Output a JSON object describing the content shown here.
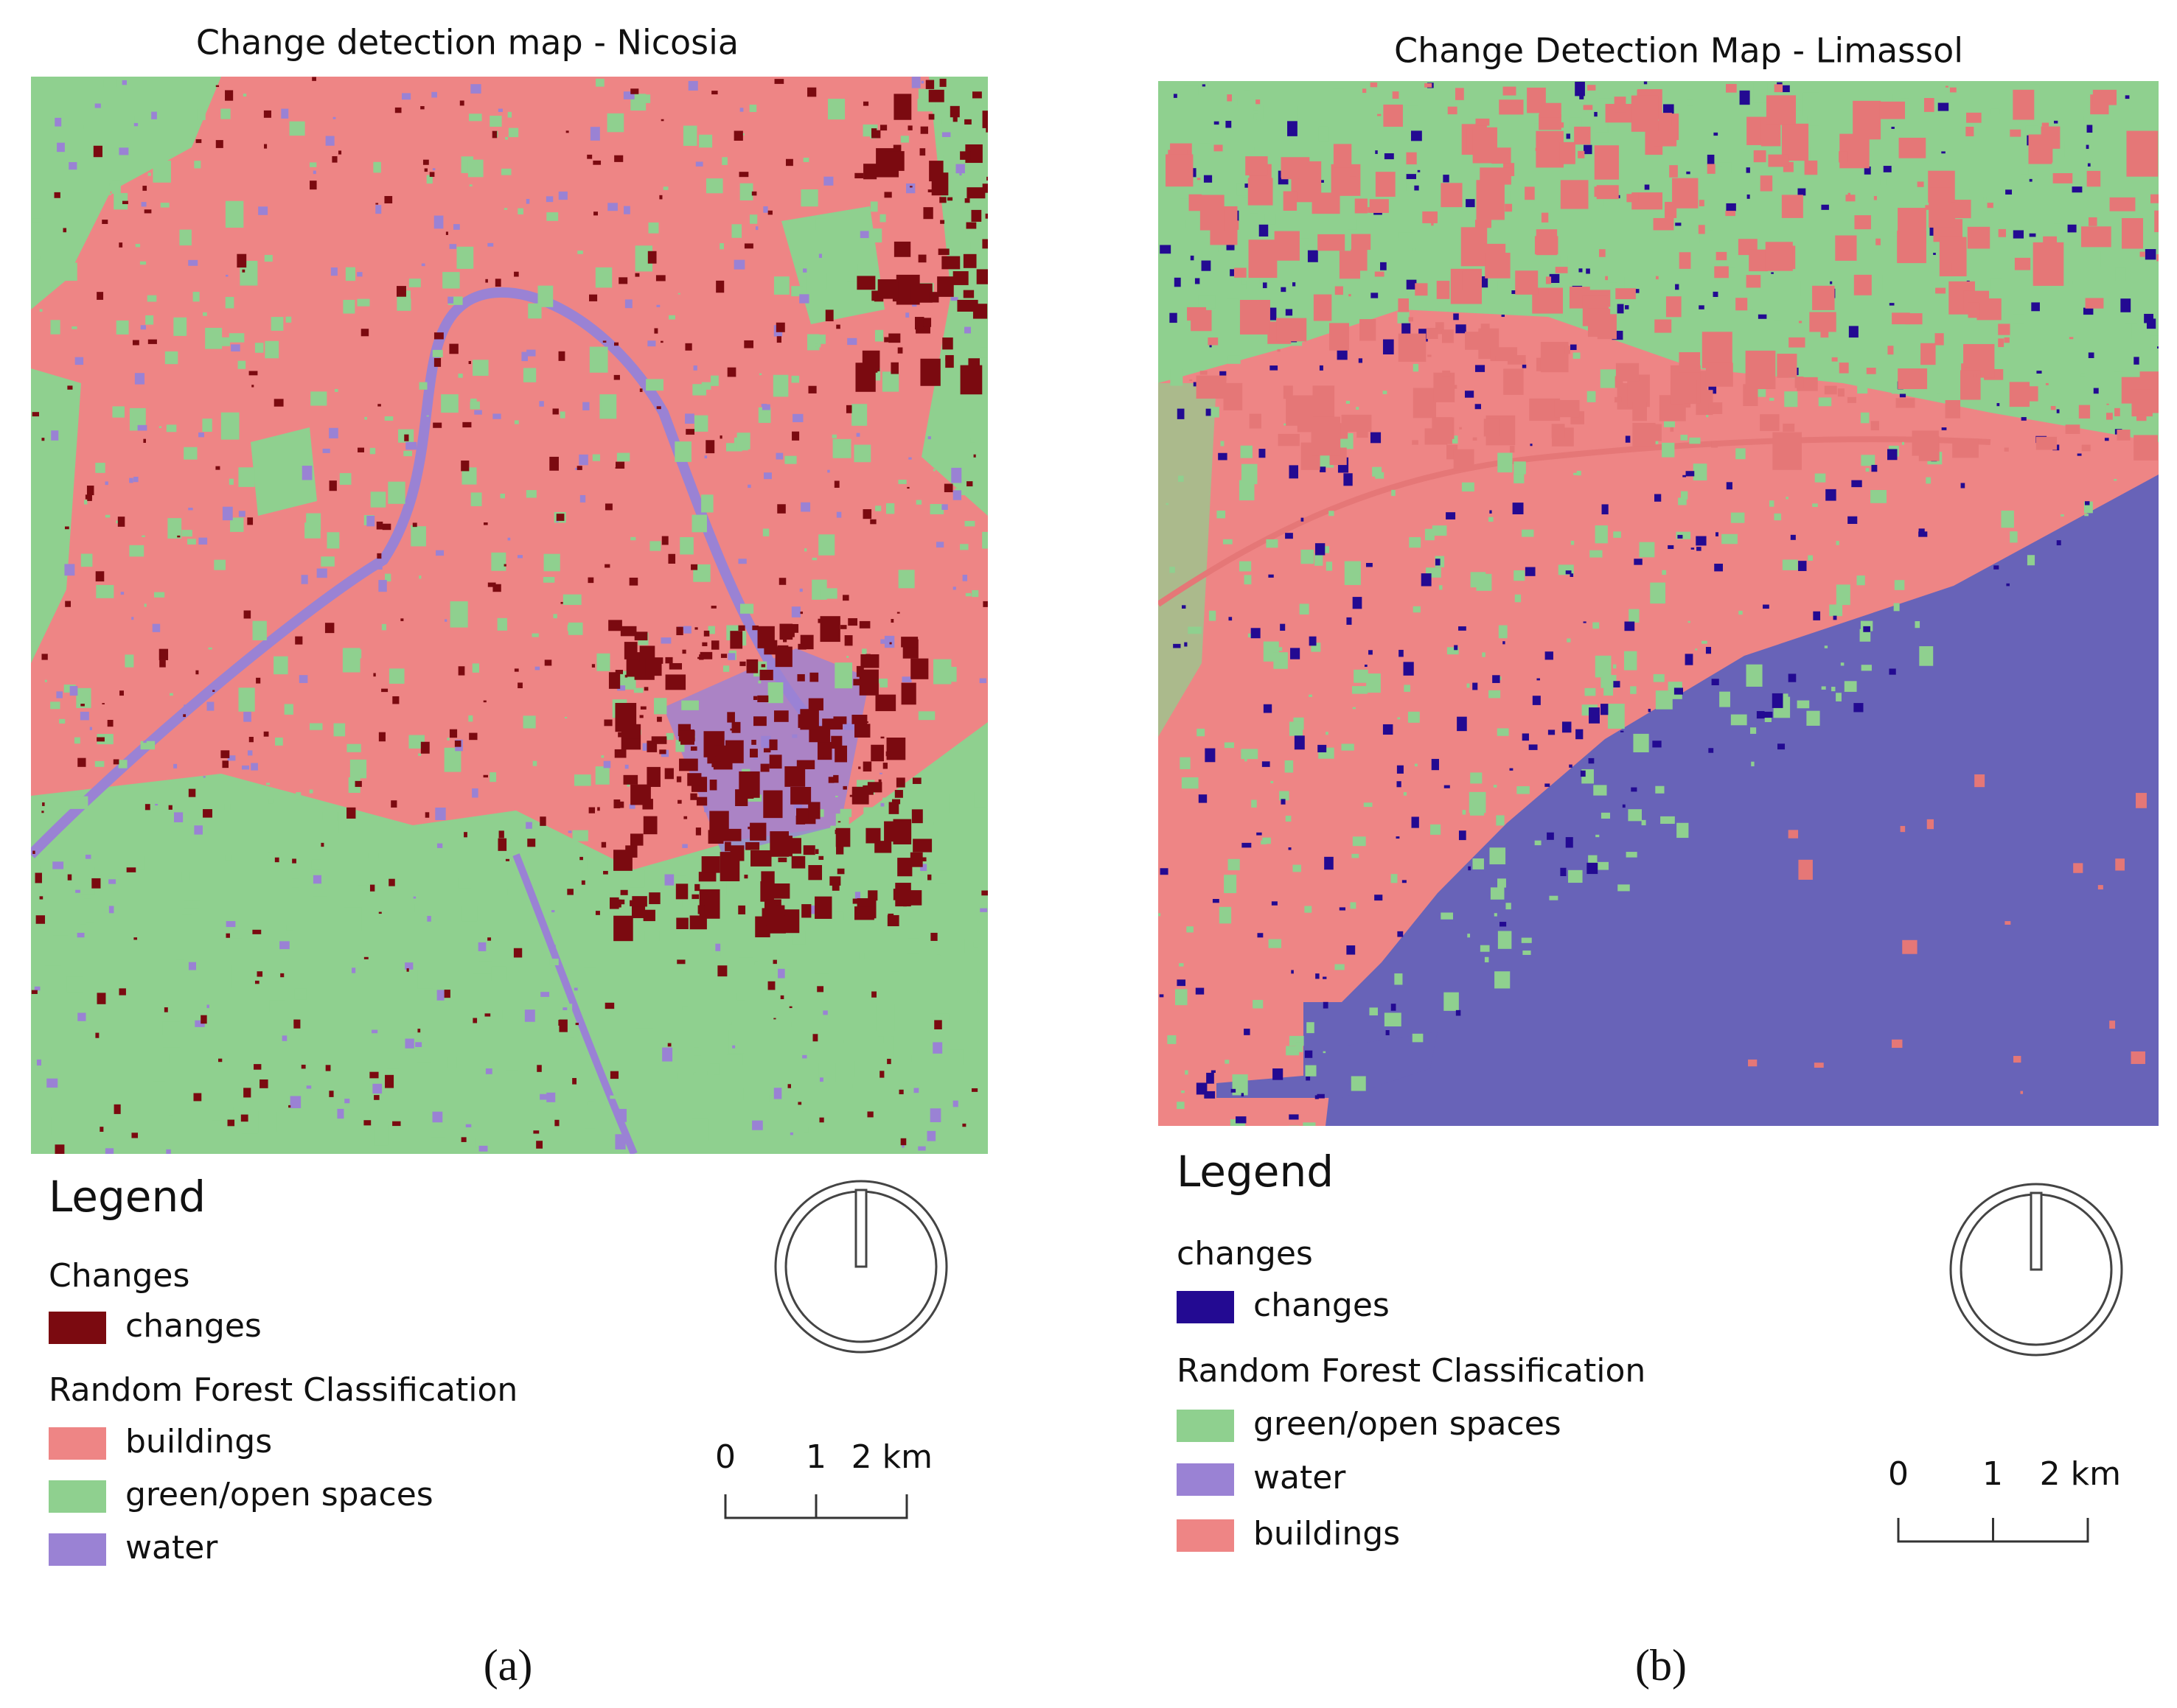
{
  "panels": [
    {
      "title": "Change detection map - Nicosia",
      "legend": {
        "title": "Legend",
        "groups": [
          {
            "title": "Changes",
            "items": [
              {
                "label": "changes",
                "color": "#7b0a10"
              }
            ]
          },
          {
            "title": "Random Forest Classification",
            "items": [
              {
                "label": "buildings",
                "color": "#ee8585"
              },
              {
                "label": "green/open spaces",
                "color": "#8fd08f"
              },
              {
                "label": "water",
                "color": "#9a82d4"
              }
            ]
          }
        ]
      },
      "scale_bar": {
        "labels": [
          "0",
          "1",
          "2 km"
        ]
      },
      "caption": "(a)"
    },
    {
      "title": "Change Detection Map - Limassol",
      "legend": {
        "title": "Legend",
        "groups": [
          {
            "title": "changes",
            "items": [
              {
                "label": "changes",
                "color": "#230a92"
              }
            ]
          },
          {
            "title": "Random Forest Classification",
            "items": [
              {
                "label": "green/open spaces",
                "color": "#8fd08f"
              },
              {
                "label": "water",
                "color": "#9a82d4"
              },
              {
                "label": "buildings",
                "color": "#ee8585"
              }
            ]
          }
        ]
      },
      "scale_bar": {
        "labels": [
          "0",
          "1",
          "2 km"
        ]
      },
      "caption": "(b)"
    }
  ]
}
